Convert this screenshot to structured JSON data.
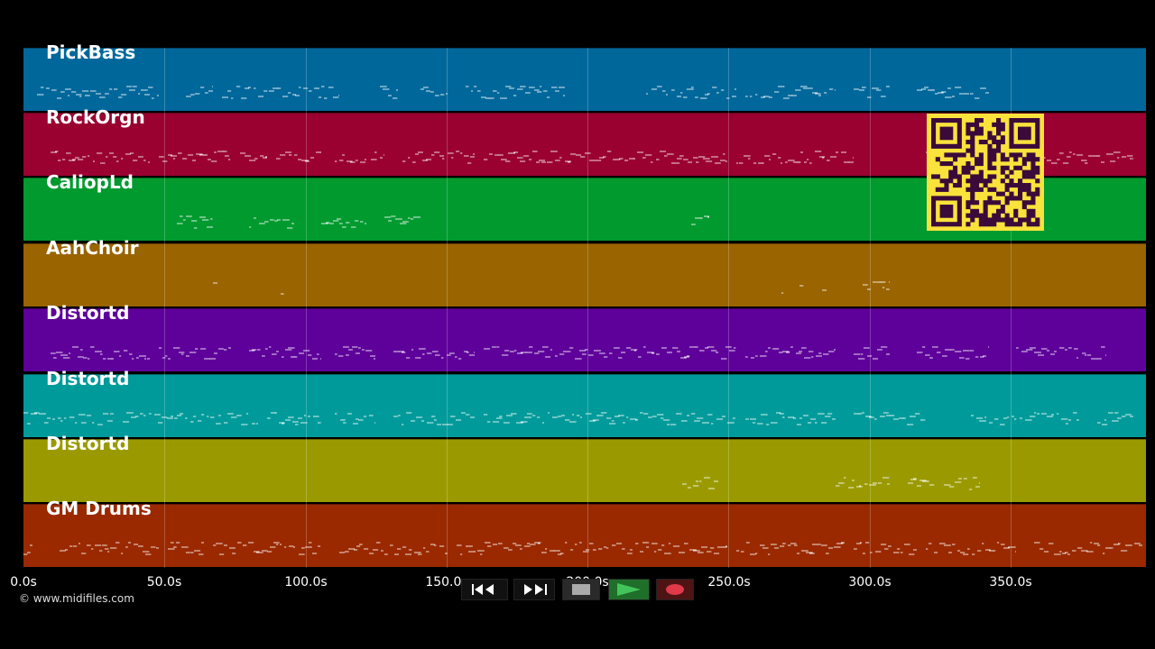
{
  "tracks": [
    {
      "name": "PickBass",
      "color": "#00679b"
    },
    {
      "name": "RockOrgn",
      "color": "#9a0030"
    },
    {
      "name": "CaliopLd",
      "color": "#009a2f"
    },
    {
      "name": "AahChoir",
      "color": "#9a6400"
    },
    {
      "name": "Distortd",
      "color": "#5e009a"
    },
    {
      "name": "Distortd",
      "color": "#009a9a"
    },
    {
      "name": "Distortd",
      "color": "#9a9a00"
    },
    {
      "name": "GM Drums",
      "color": "#9a2900"
    }
  ],
  "timeline": {
    "ticks": [
      "0.0s",
      "50.0s",
      "100.0s",
      "150.0s",
      "200.0s",
      "250.0s",
      "300.0s",
      "350.0s"
    ],
    "max_seconds": 398
  },
  "copyright": "© www.midifiles.com",
  "transport": {
    "rewind": "rewind-icon",
    "fast_forward": "fast-forward-icon",
    "stop": "stop-icon",
    "play": "play-icon",
    "record": "record-icon"
  },
  "colors": {
    "play_bg": "#1f6e2a",
    "play_icon": "#43c45a",
    "record_bg": "#4e1414",
    "record_icon": "#e0394a",
    "qr_bg": "#f9e23b",
    "qr_fg": "#3b0a3a"
  }
}
